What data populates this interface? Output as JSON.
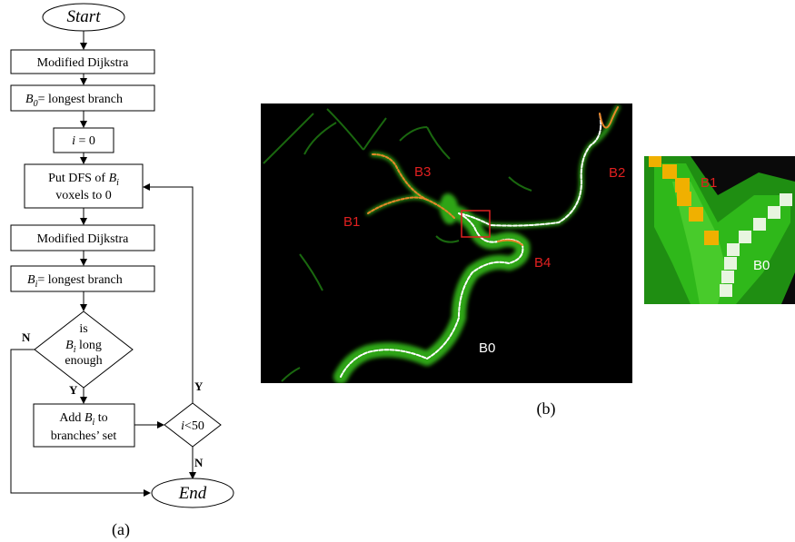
{
  "flowchart": {
    "start_label": "Start",
    "step1_label": "Modified Dijkstra",
    "step2_var": "B",
    "step2_sub": "0",
    "step2_rest": "= longest branch",
    "step3_var": "i",
    "step3_rest": " = 0",
    "step4_line1_prefix": "Put DFS of ",
    "step4_line1_var": "B",
    "step4_line1_sub": "i",
    "step4_line2": "voxels to 0",
    "step5_label": "Modified Dijkstra",
    "step6_var": "B",
    "step6_sub": "i",
    "step6_rest": "= longest branch",
    "decision1_line1": "is",
    "decision1_var": "B",
    "decision1_sub": "i",
    "decision1_line2_rest": " long",
    "decision1_line3": "enough",
    "no_label": "N",
    "yes_label": "Y",
    "step7_line1_prefix": "Add ",
    "step7_var": "B",
    "step7_sub": "i",
    "step7_line1_suffix": " to",
    "step7_line2": "branches’ set",
    "decision2_var": "i",
    "decision2_rest": "<50",
    "yes_label_2": "Y",
    "no_label_2": "N",
    "end_label": "End",
    "caption": "(a)"
  },
  "vessel_image": {
    "labels": [
      "B3",
      "B2",
      "B1",
      "B4",
      "B0"
    ],
    "caption": "(b)"
  },
  "zoom_image": {
    "labels": [
      "B1",
      "B0"
    ]
  },
  "colors": {
    "vessel_green": "#35c21c",
    "centerline_white": "#ffffff",
    "branch_orange": "#e8862a",
    "label_red": "#e02020",
    "box_red": "#e02020",
    "zoom_dark_green": "#1f7a12",
    "zoom_yellow": "#f0b000"
  }
}
